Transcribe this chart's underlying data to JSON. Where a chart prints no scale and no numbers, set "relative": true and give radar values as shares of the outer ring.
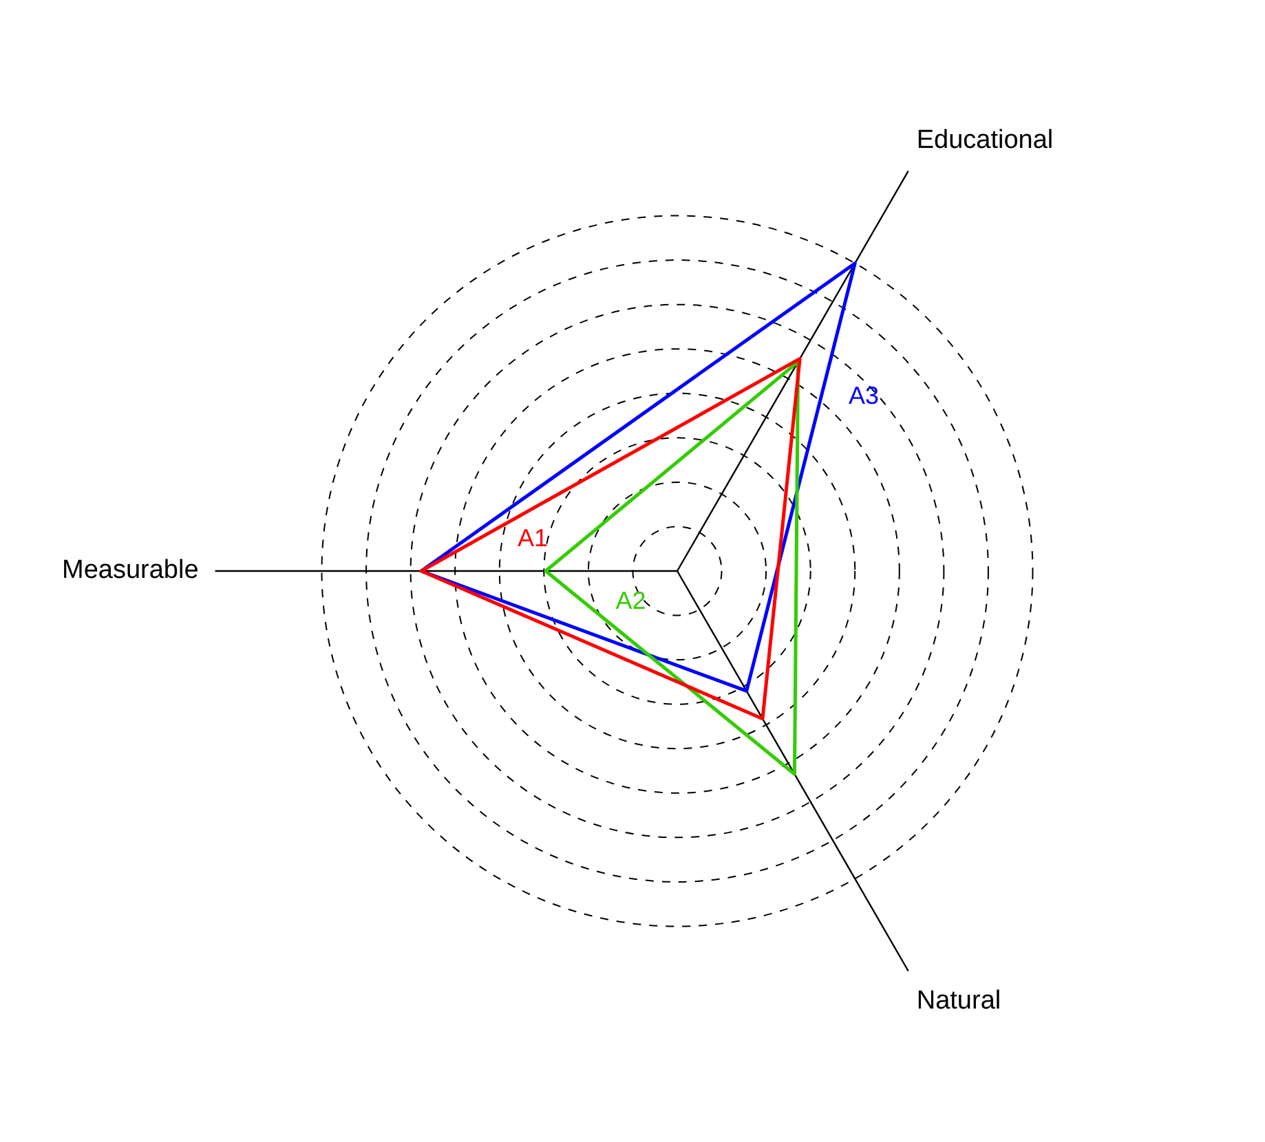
{
  "chart_data": {
    "type": "radar",
    "relative": true,
    "grid": true,
    "categories": [
      "Educational",
      "Natural",
      "Measurable"
    ],
    "series": [
      {
        "name": "A1",
        "color": "#ff0000",
        "values": [
          0.69,
          0.48,
          0.72
        ]
      },
      {
        "name": "A2",
        "color": "#33cc00",
        "values": [
          0.68,
          0.66,
          0.37
        ]
      },
      {
        "name": "A3",
        "color": "#0000ff",
        "values": [
          1.0,
          0.39,
          0.72
        ]
      }
    ]
  }
}
